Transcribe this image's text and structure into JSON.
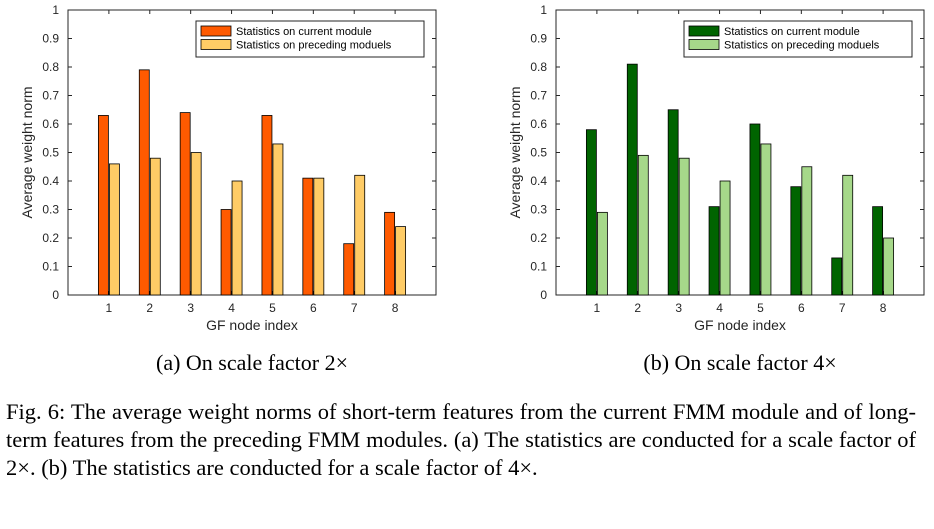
{
  "chart_data": [
    {
      "type": "bar",
      "categories": [
        "1",
        "2",
        "3",
        "4",
        "5",
        "6",
        "7",
        "8"
      ],
      "series": [
        {
          "name": "Statistics on current module",
          "values": [
            0.63,
            0.79,
            0.64,
            0.3,
            0.63,
            0.41,
            0.18,
            0.29
          ],
          "color": "#ff5a00"
        },
        {
          "name": "Statistics on preceding moduels",
          "values": [
            0.46,
            0.48,
            0.5,
            0.4,
            0.53,
            0.41,
            0.42,
            0.24
          ],
          "color": "#ffcc66"
        }
      ],
      "xlabel": "GF node index",
      "ylabel": "Average weight norm",
      "ylim": [
        0,
        1
      ],
      "yticks": [
        "0",
        "0.1",
        "0.2",
        "0.3",
        "0.4",
        "0.5",
        "0.6",
        "0.7",
        "0.8",
        "0.9",
        "1"
      ],
      "legend": "top-right",
      "subcaption": "(a) On scale factor 2×"
    },
    {
      "type": "bar",
      "categories": [
        "1",
        "2",
        "3",
        "4",
        "5",
        "6",
        "7",
        "8"
      ],
      "series": [
        {
          "name": "Statistics on current module",
          "values": [
            0.58,
            0.81,
            0.65,
            0.31,
            0.6,
            0.38,
            0.13,
            0.31
          ],
          "color": "#006400"
        },
        {
          "name": "Statistics on preceding moduels",
          "values": [
            0.29,
            0.49,
            0.48,
            0.4,
            0.53,
            0.45,
            0.42,
            0.2
          ],
          "color": "#a6d88a"
        }
      ],
      "xlabel": "GF node index",
      "ylabel": "Average weight norm",
      "ylim": [
        0,
        1
      ],
      "yticks": [
        "0",
        "0.1",
        "0.2",
        "0.3",
        "0.4",
        "0.5",
        "0.6",
        "0.7",
        "0.8",
        "0.9",
        "1"
      ],
      "legend": "top-right",
      "subcaption": "(b) On scale factor 4×"
    }
  ],
  "caption": "Fig. 6: The average weight norms of short-term features from the current FMM module and of long-term features from the preceding FMM modules. (a) The statistics are conducted for a scale factor of 2×. (b) The statistics are conducted for a scale factor of 4×."
}
